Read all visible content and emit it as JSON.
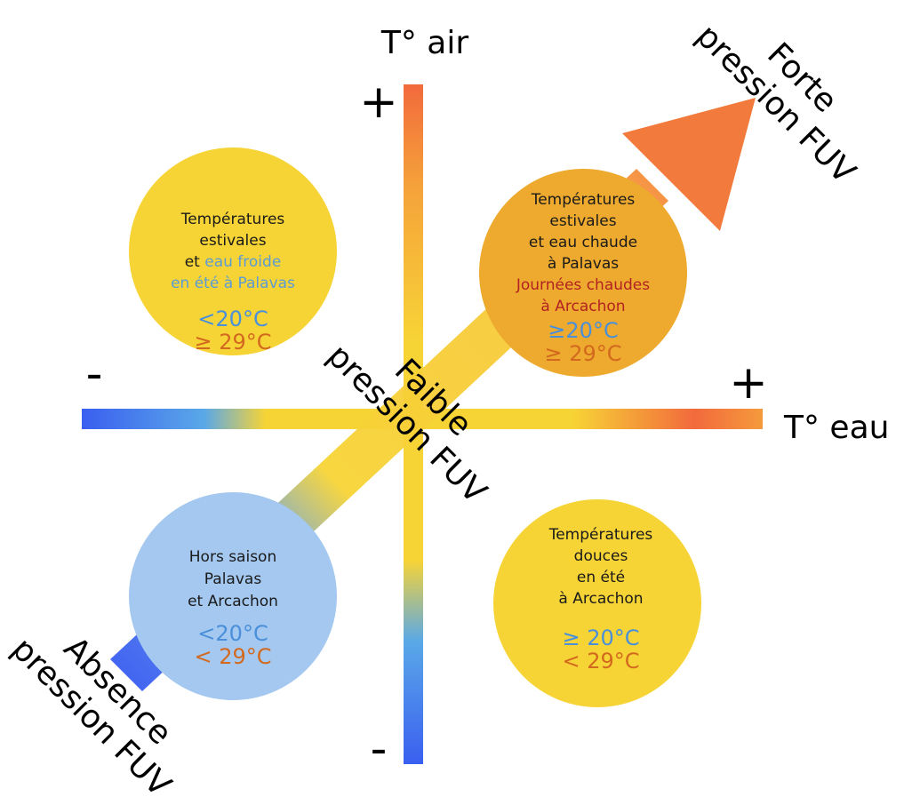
{
  "axes": {
    "y_label": "T° air",
    "x_label": "T° eau",
    "y_plus": "+",
    "y_minus": "-",
    "x_plus": "+",
    "x_minus": "-"
  },
  "arrow": {
    "top_label_1": "Forte",
    "top_label_2": "pression FUV",
    "middle_label_1": "Faible",
    "middle_label_2": "pression FUV",
    "bottom_label_1": "Absence",
    "bottom_label_2": "pression FUV"
  },
  "quadrants": {
    "top_left": {
      "line1": "Températures",
      "line2": "estivales",
      "line3_plain": "et ",
      "line3_blue": "eau froide",
      "line4_blue": "en été à Palavas",
      "water": "<20°C",
      "air": "≥ 29°C"
    },
    "top_right": {
      "line1": "Températures",
      "line2": "estivales",
      "line3": "et eau chaude",
      "line4": "à Palavas",
      "line5_red": "Journées chaudes",
      "line6_red": "à Arcachon",
      "water": "≥20°C",
      "air": "≥ 29°C"
    },
    "bottom_left": {
      "line1": "Hors saison",
      "line2": "Palavas",
      "line3": "et Arcachon",
      "water": "<20°C",
      "air": "< 29°C"
    },
    "bottom_right": {
      "line1": "Températures",
      "line2": "douces",
      "line3": "en été",
      "line4": "à Arcachon",
      "water": "≥ 20°C",
      "air": "< 29°C"
    }
  },
  "colors": {
    "cold": "#3a5ff0",
    "mild": "#f7d436",
    "hot": "#f26a3c",
    "circle_yellow": "#f7d436",
    "circle_orange": "#edaa2e",
    "circle_blue": "#a4c8f0"
  }
}
